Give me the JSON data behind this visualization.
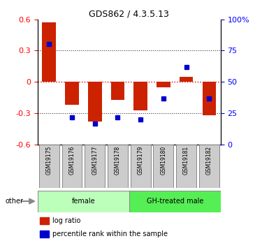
{
  "title": "GDS862 / 4.3.5.13",
  "samples": [
    "GSM19175",
    "GSM19176",
    "GSM19177",
    "GSM19178",
    "GSM19179",
    "GSM19180",
    "GSM19181",
    "GSM19182"
  ],
  "log_ratio": [
    0.57,
    -0.22,
    -0.38,
    -0.17,
    -0.27,
    -0.05,
    0.05,
    -0.32
  ],
  "percentile_rank": [
    80,
    22,
    17,
    22,
    20,
    37,
    62,
    37
  ],
  "groups": [
    {
      "label": "female",
      "start": 0,
      "end": 4,
      "color": "#bbffbb"
    },
    {
      "label": "GH-treated male",
      "start": 4,
      "end": 8,
      "color": "#55ee55"
    }
  ],
  "ylim_left": [
    -0.6,
    0.6
  ],
  "yticks_left": [
    -0.6,
    -0.3,
    0.0,
    0.3,
    0.6
  ],
  "ytick_labels_left": [
    "-0.6",
    "-0.3",
    "0",
    "0.3",
    "0.6"
  ],
  "yticks_right": [
    0,
    25,
    50,
    75,
    100
  ],
  "ytick_labels_right": [
    "0",
    "25",
    "50",
    "75",
    "100%"
  ],
  "bar_color": "#cc2200",
  "dot_color": "#0000cc",
  "hline_color": "#dd0000",
  "grid_color": "#333333",
  "other_label": "other",
  "legend_log_ratio": "log ratio",
  "legend_percentile": "percentile rank within the sample"
}
